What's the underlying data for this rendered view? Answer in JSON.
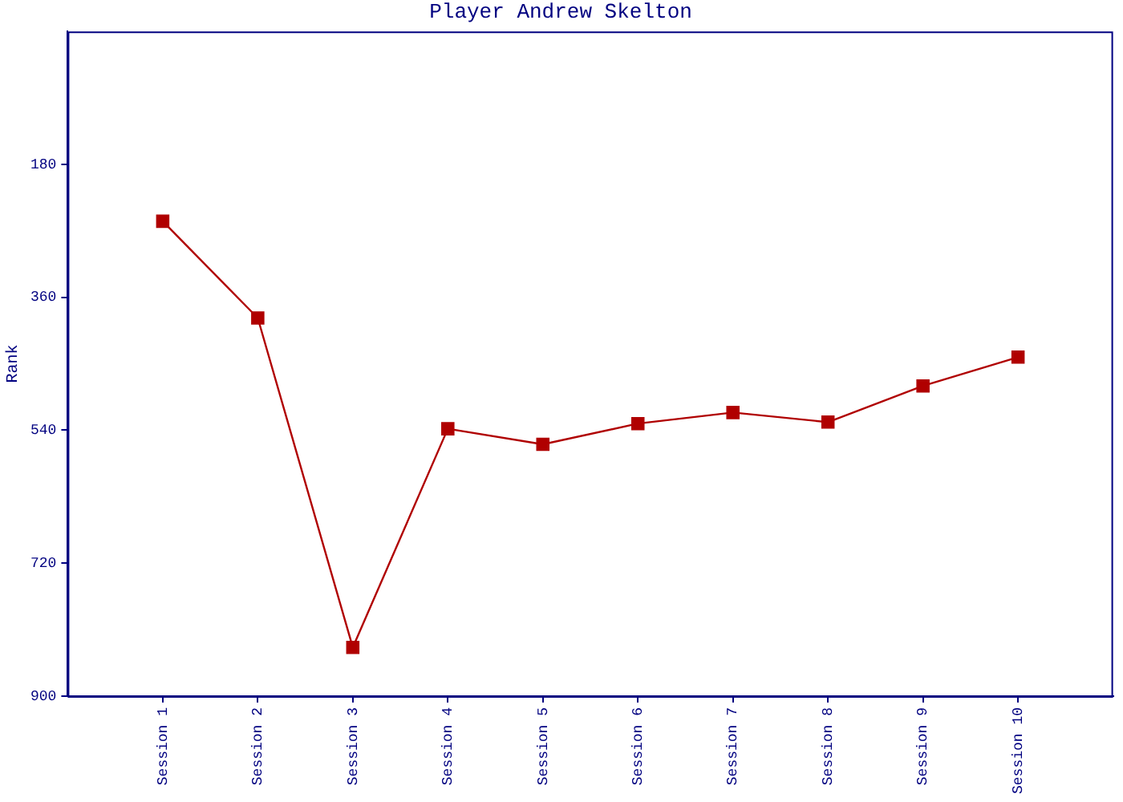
{
  "chart_data": {
    "type": "line",
    "title": "Player Andrew Skelton",
    "ylabel": "Rank",
    "categories": [
      "Session 1",
      "Session 2",
      "Session 3",
      "Session 4",
      "Session 5",
      "Session 6",
      "Session 7",
      "Session 8",
      "Session 9",
      "Session 10"
    ],
    "series": [
      {
        "color": "#b00000",
        "values": [
          257,
          388,
          834,
          538,
          559,
          531,
          516,
          529,
          480,
          441
        ]
      }
    ],
    "ylim": [
      900,
      0
    ],
    "yticks": [
      180,
      360,
      540,
      720,
      900
    ],
    "grid": false,
    "legend": false,
    "marker": "square",
    "line_style": "solid"
  }
}
